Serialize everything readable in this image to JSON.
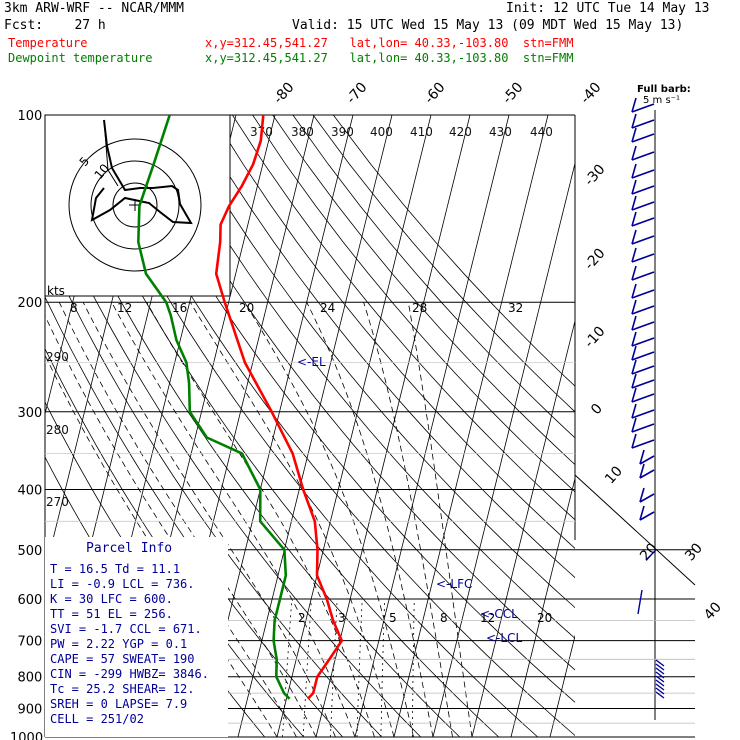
{
  "header": {
    "model": "3km ARW-WRF -- NCAR/MMM",
    "init": "Init: 12 UTC Tue 14 May 13",
    "fcst": "Fcst:    27 h",
    "valid": "Valid: 15 UTC Wed 15 May 13 (09 MDT Wed 15 May 13)",
    "temp_label": "Temperature",
    "temp_info": "x,y=312.45,541.27   lat,lon= 40.33,-103.80  stn=FMM",
    "dew_label": "Dewpoint temperature",
    "dew_info": "x,y=312.45,541.27   lat,lon= 40.33,-103.80  stn=FMM",
    "barb_title": "Full barb:",
    "barb_unit": "5 m s⁻¹"
  },
  "colors": {
    "temperature": "#ff0000",
    "dewpoint": "#008000",
    "annotation": "#000099",
    "grid": "#000000"
  },
  "chart_data": {
    "type": "line",
    "subtype": "skew-T log-p",
    "pressure_levels": [
      100,
      200,
      300,
      400,
      500,
      600,
      700,
      800,
      900,
      1000
    ],
    "isotherm_labels": [
      "-80",
      "-70",
      "-60",
      "-50",
      "-40",
      "-30",
      "-20",
      "-10",
      "0",
      "10",
      "20",
      "30",
      "40"
    ],
    "theta_labels": [
      "370",
      "380",
      "390",
      "400",
      "410",
      "420",
      "430",
      "440",
      "290",
      "280",
      "270"
    ],
    "mixing_ratio_labels": [
      "2",
      "3",
      "5",
      "8",
      "12",
      "20"
    ],
    "hodograph": {
      "speed_unit": "kts",
      "ring_labels": [
        "5",
        "10"
      ],
      "axis_labels": [
        "8",
        "12",
        "16",
        "20",
        "24",
        "28",
        "32"
      ]
    },
    "series": [
      {
        "name": "Temperature",
        "points": [
          [
            868,
            -4.5
          ],
          [
            850,
            -3.5
          ],
          [
            800,
            -3.5
          ],
          [
            750,
            -1.5
          ],
          [
            700,
            0.5
          ],
          [
            650,
            -3
          ],
          [
            600,
            -6
          ],
          [
            550,
            -10
          ],
          [
            500,
            -11.5
          ],
          [
            450,
            -14
          ],
          [
            400,
            -19
          ],
          [
            350,
            -24
          ],
          [
            300,
            -32
          ],
          [
            250,
            -42
          ],
          [
            200,
            -51
          ],
          [
            180,
            -55
          ],
          [
            160,
            -56
          ],
          [
            150,
            -57
          ],
          [
            140,
            -56
          ],
          [
            130,
            -54
          ],
          [
            120,
            -52.5
          ],
          [
            110,
            -52
          ],
          [
            100,
            -53
          ]
        ]
      },
      {
        "name": "Dewpoint temperature",
        "points": [
          [
            868,
            -9.2
          ],
          [
            850,
            -11
          ],
          [
            800,
            -14
          ],
          [
            750,
            -15
          ],
          [
            700,
            -17
          ],
          [
            650,
            -18
          ],
          [
            600,
            -18
          ],
          [
            550,
            -18
          ],
          [
            500,
            -20
          ],
          [
            450,
            -28
          ],
          [
            400,
            -30
          ],
          [
            350,
            -37
          ],
          [
            330,
            -47
          ],
          [
            300,
            -53
          ],
          [
            270,
            -55
          ],
          [
            250,
            -57
          ],
          [
            230,
            -61
          ],
          [
            210,
            -64
          ],
          [
            200,
            -66
          ],
          [
            180,
            -73
          ],
          [
            160,
            -77
          ],
          [
            140,
            -79
          ],
          [
            120,
            -78
          ],
          [
            100,
            -77
          ]
        ]
      }
    ],
    "annotations": [
      "<-EL",
      "<-LFC",
      "<-CCL",
      "<-LCL"
    ],
    "wind_barbs": true
  },
  "parcel_info": {
    "title": "Parcel Info",
    "rows": [
      "T  =    16.5  Td =  11.1",
      "LI =    -0.9  LCL =  736.",
      "K  =      30  LFC =  600.",
      "TT =      51  EL  =  256.",
      "SVI =   -1.7  CCL =  671.",
      "PW =    2.22  YGP =   0.1",
      "CAPE =    57  SWEAT=  190",
      "CIN =   -299  HWBZ= 3846.",
      "Tc =    25.2  SHEAR=  12.",
      "SREH =     0  LAPSE=  7.9",
      "CELL = 251/02"
    ]
  }
}
